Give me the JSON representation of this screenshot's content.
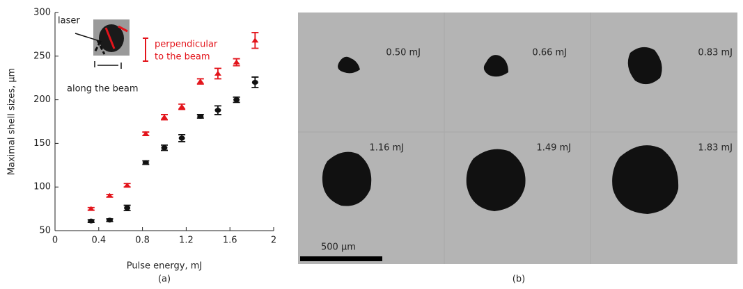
{
  "chart_data": {
    "type": "scatter",
    "x_label": "Pulse energy, mJ",
    "y_label": "Maximal shell sizes, µm",
    "panel_label": "(a)",
    "x": [
      0.33,
      0.5,
      0.66,
      0.83,
      1.0,
      1.16,
      1.33,
      1.49,
      1.66,
      1.83
    ],
    "series": [
      {
        "color": "#111111",
        "values": [
          61,
          62,
          76,
          128,
          145,
          156,
          181,
          188,
          200,
          220
        ],
        "errors": [
          1.5,
          1.5,
          3,
          2,
          3,
          4,
          2,
          5,
          3,
          6
        ]
      },
      {
        "color": "#e3141b",
        "values": [
          75,
          90,
          102,
          161,
          180,
          192,
          221,
          230,
          243,
          268
        ],
        "errors": [
          1.5,
          1.5,
          2,
          2,
          3,
          3,
          3,
          6,
          4,
          9
        ]
      }
    ],
    "xlim": [
      0,
      2
    ],
    "xticks": [
      0,
      0.4,
      0.8,
      1.2,
      1.6,
      2
    ],
    "ylim": [
      50,
      300
    ],
    "yticks": [
      50,
      100,
      150,
      200,
      250,
      300
    ],
    "annotations": [
      "laser",
      "perpendicular",
      "to the beam",
      "along the beam"
    ]
  },
  "panel_b": {
    "panel_label": "(b)",
    "frames": [
      "0.50 mJ",
      "0.66 mJ",
      "0.83 mJ",
      "1.16 mJ",
      "1.49 mJ",
      "1.83 mJ"
    ],
    "scale_bar": "500 µm"
  }
}
